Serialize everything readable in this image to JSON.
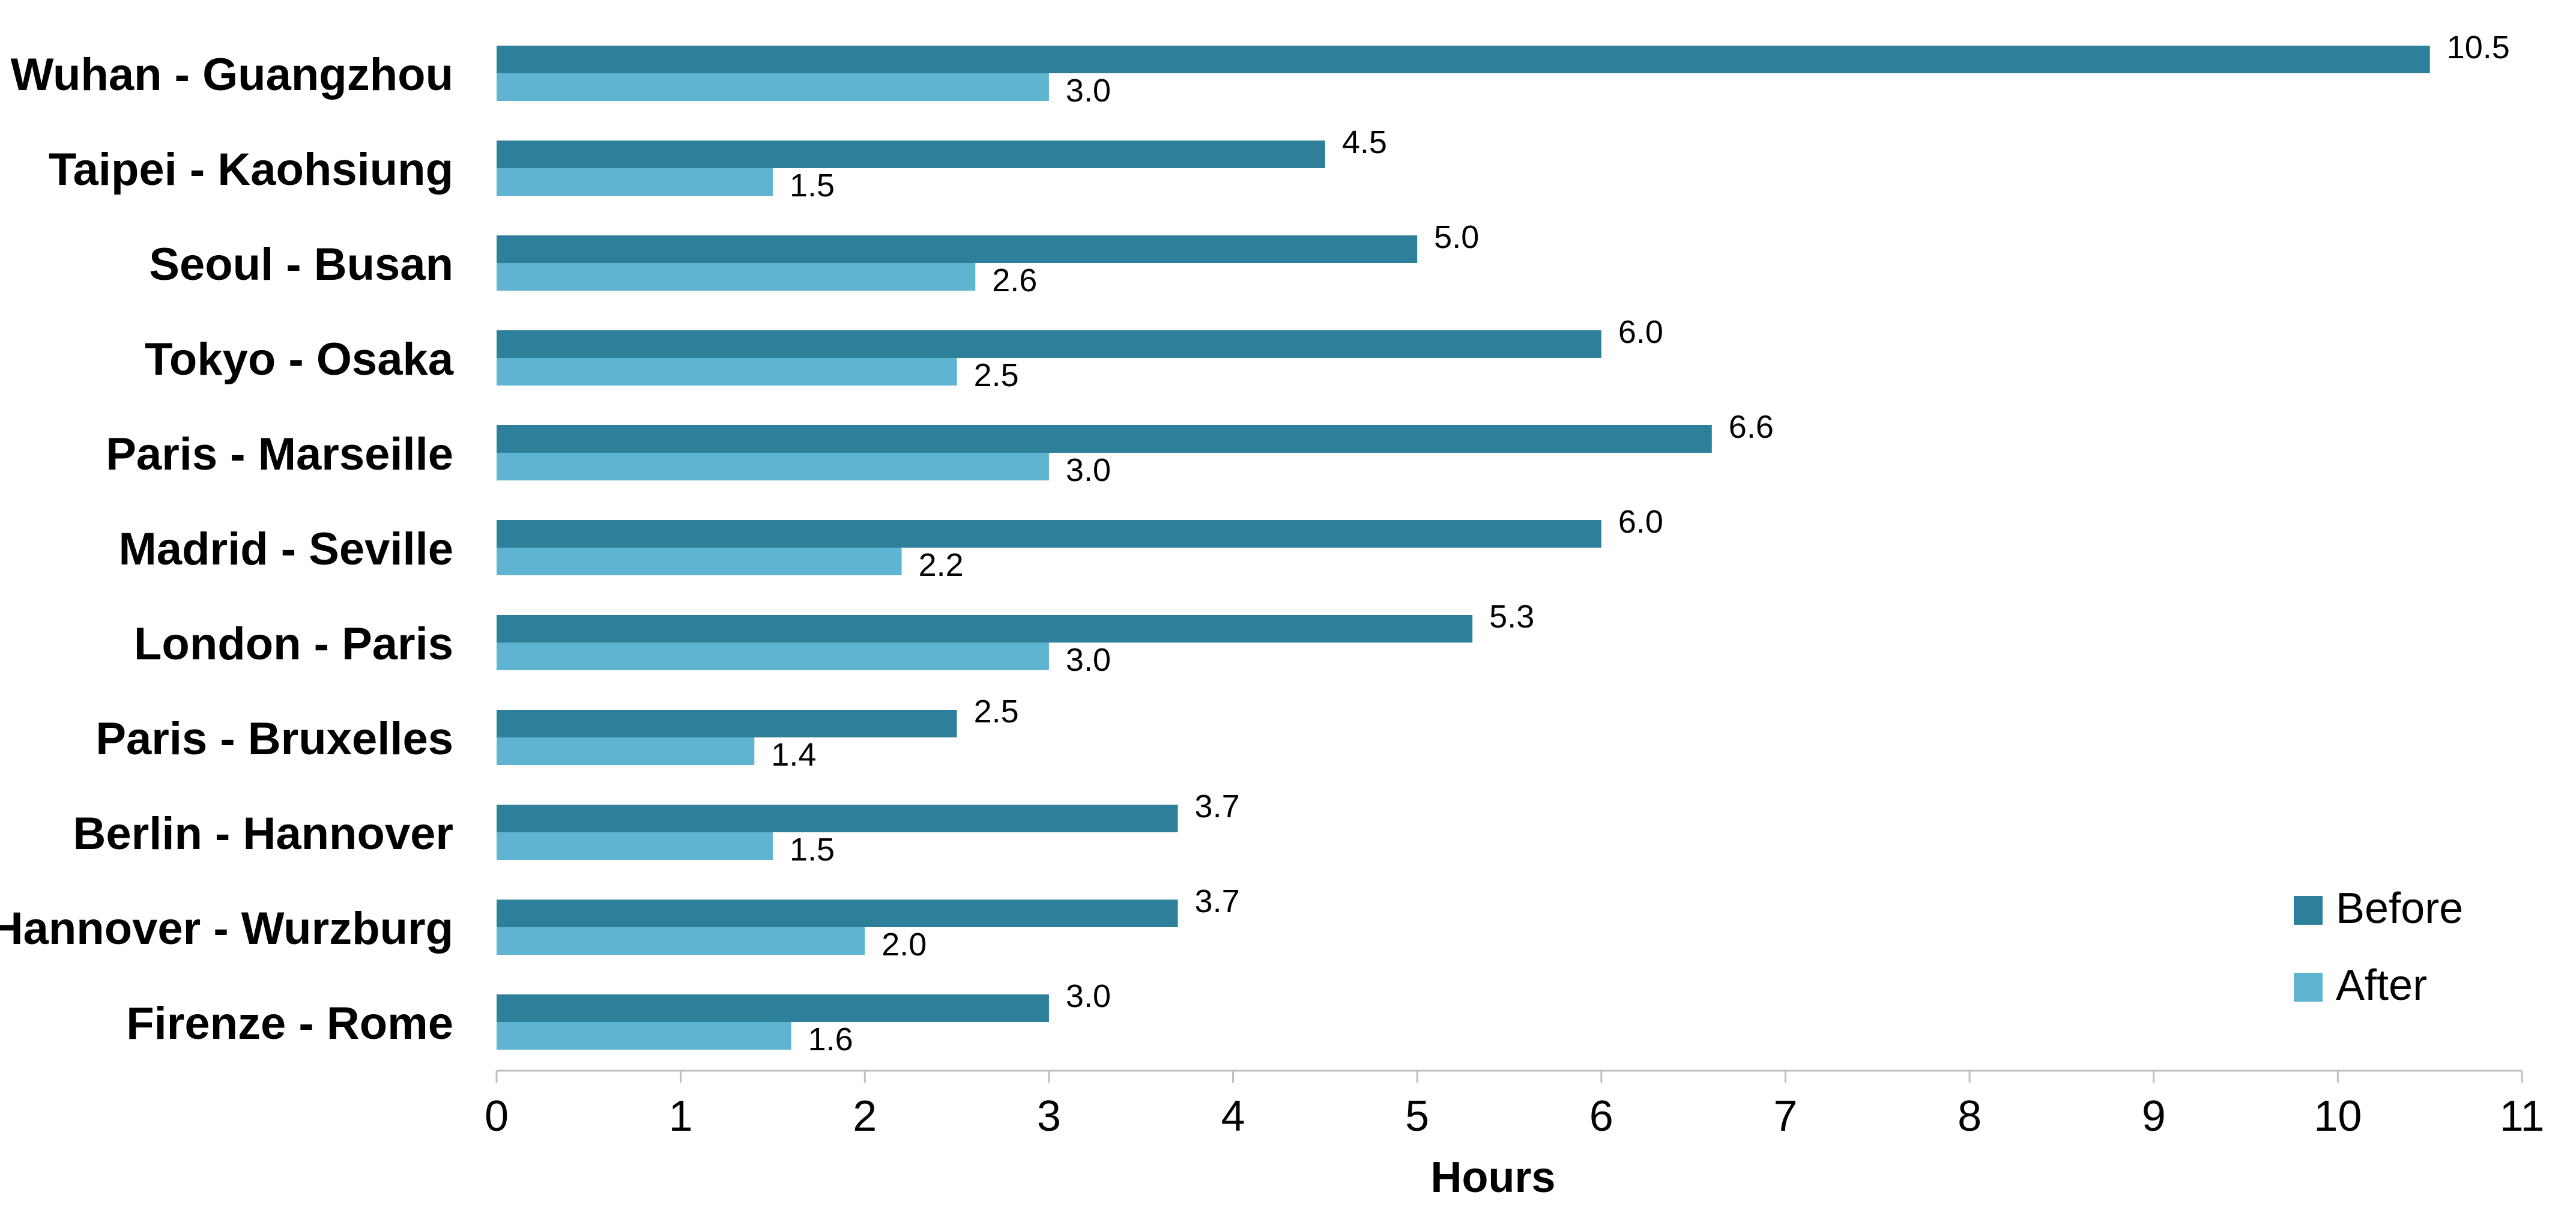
{
  "chart_data": {
    "type": "bar",
    "orientation": "horizontal",
    "title": "",
    "xlabel": "Hours",
    "ylabel": "",
    "xlim": [
      0,
      11
    ],
    "xticks": [
      0,
      1,
      2,
      3,
      4,
      5,
      6,
      7,
      8,
      9,
      10,
      11
    ],
    "grid": false,
    "legend_position": "bottom-right",
    "categories": [
      "Wuhan - Guangzhou",
      "Taipei - Kaohsiung",
      "Seoul - Busan",
      "Tokyo - Osaka",
      "Paris - Marseille",
      "Madrid - Seville",
      "London - Paris",
      "Paris - Bruxelles",
      "Berlin - Hannover",
      "Hannover - Wurzburg",
      "Firenze - Rome"
    ],
    "series": [
      {
        "name": "Before",
        "color": "#2e7f9a",
        "values": [
          10.5,
          4.5,
          5.0,
          6.0,
          6.6,
          6.0,
          5.3,
          2.5,
          3.7,
          3.7,
          3.0
        ],
        "value_labels": [
          "10.5",
          "4.5",
          "5.0",
          "6.0",
          "6.6",
          "6.0",
          "5.3",
          "2.5",
          "3.7",
          "3.7",
          "3.0"
        ]
      },
      {
        "name": "After",
        "color": "#5fb4d2",
        "values": [
          3.0,
          1.5,
          2.6,
          2.5,
          3.0,
          2.2,
          3.0,
          1.4,
          1.5,
          2.0,
          1.6
        ],
        "value_labels": [
          "3.0",
          "1.5",
          "2.6",
          "2.5",
          "3.0",
          "2.2",
          "3.0",
          "1.4",
          "1.5",
          "2.0",
          "1.6"
        ]
      }
    ]
  }
}
